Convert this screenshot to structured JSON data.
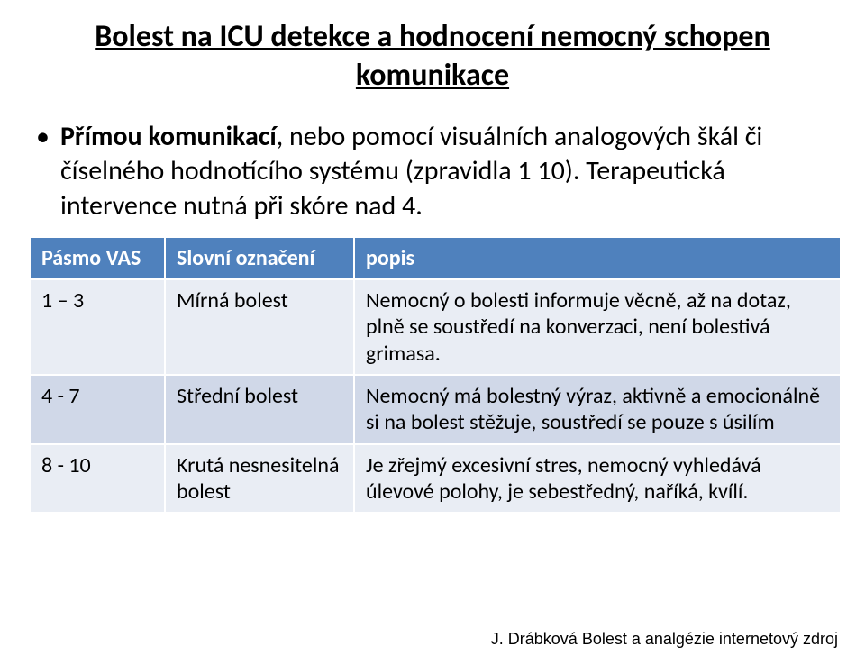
{
  "title": "Bolest na ICU detekce a hodnocení nemocný schopen komunikace",
  "bullet": {
    "pre": "Přímou komunikací",
    "rest": ", nebo pomocí visuálních analogových škál či číselného hodnotícího systému (zpravidla 1 10). Terapeutická intervence nutná při skóre nad 4."
  },
  "table": {
    "headers": [
      "Pásmo VAS",
      "Slovní označení",
      "popis"
    ],
    "rows": [
      {
        "c0": "1 – 3",
        "c1": "Mírná bolest",
        "c2": "Nemocný o bolesti informuje věcně, až na dotaz, plně se soustředí na konverzaci, není bolestivá grimasa."
      },
      {
        "c0": "4 - 7",
        "c1": "Střední bolest",
        "c2": "Nemocný má bolestný výraz, aktivně a emocionálně si na bolest stěžuje, soustředí se pouze s úsilím"
      },
      {
        "c0": "8 - 10",
        "c1": "Krutá nesnesitelná bolest",
        "c2": "Je zřejmý excesivní stres, nemocný vyhledává úlevové polohy, je sebestředný, naříká, kvílí."
      }
    ],
    "row_bg": [
      "#e9edf4",
      "#d0d8e8",
      "#e9edf4"
    ],
    "header_bg": "#4f81bd"
  },
  "footer": "J. Drábková Bolest a analgézie internetový zdroj"
}
